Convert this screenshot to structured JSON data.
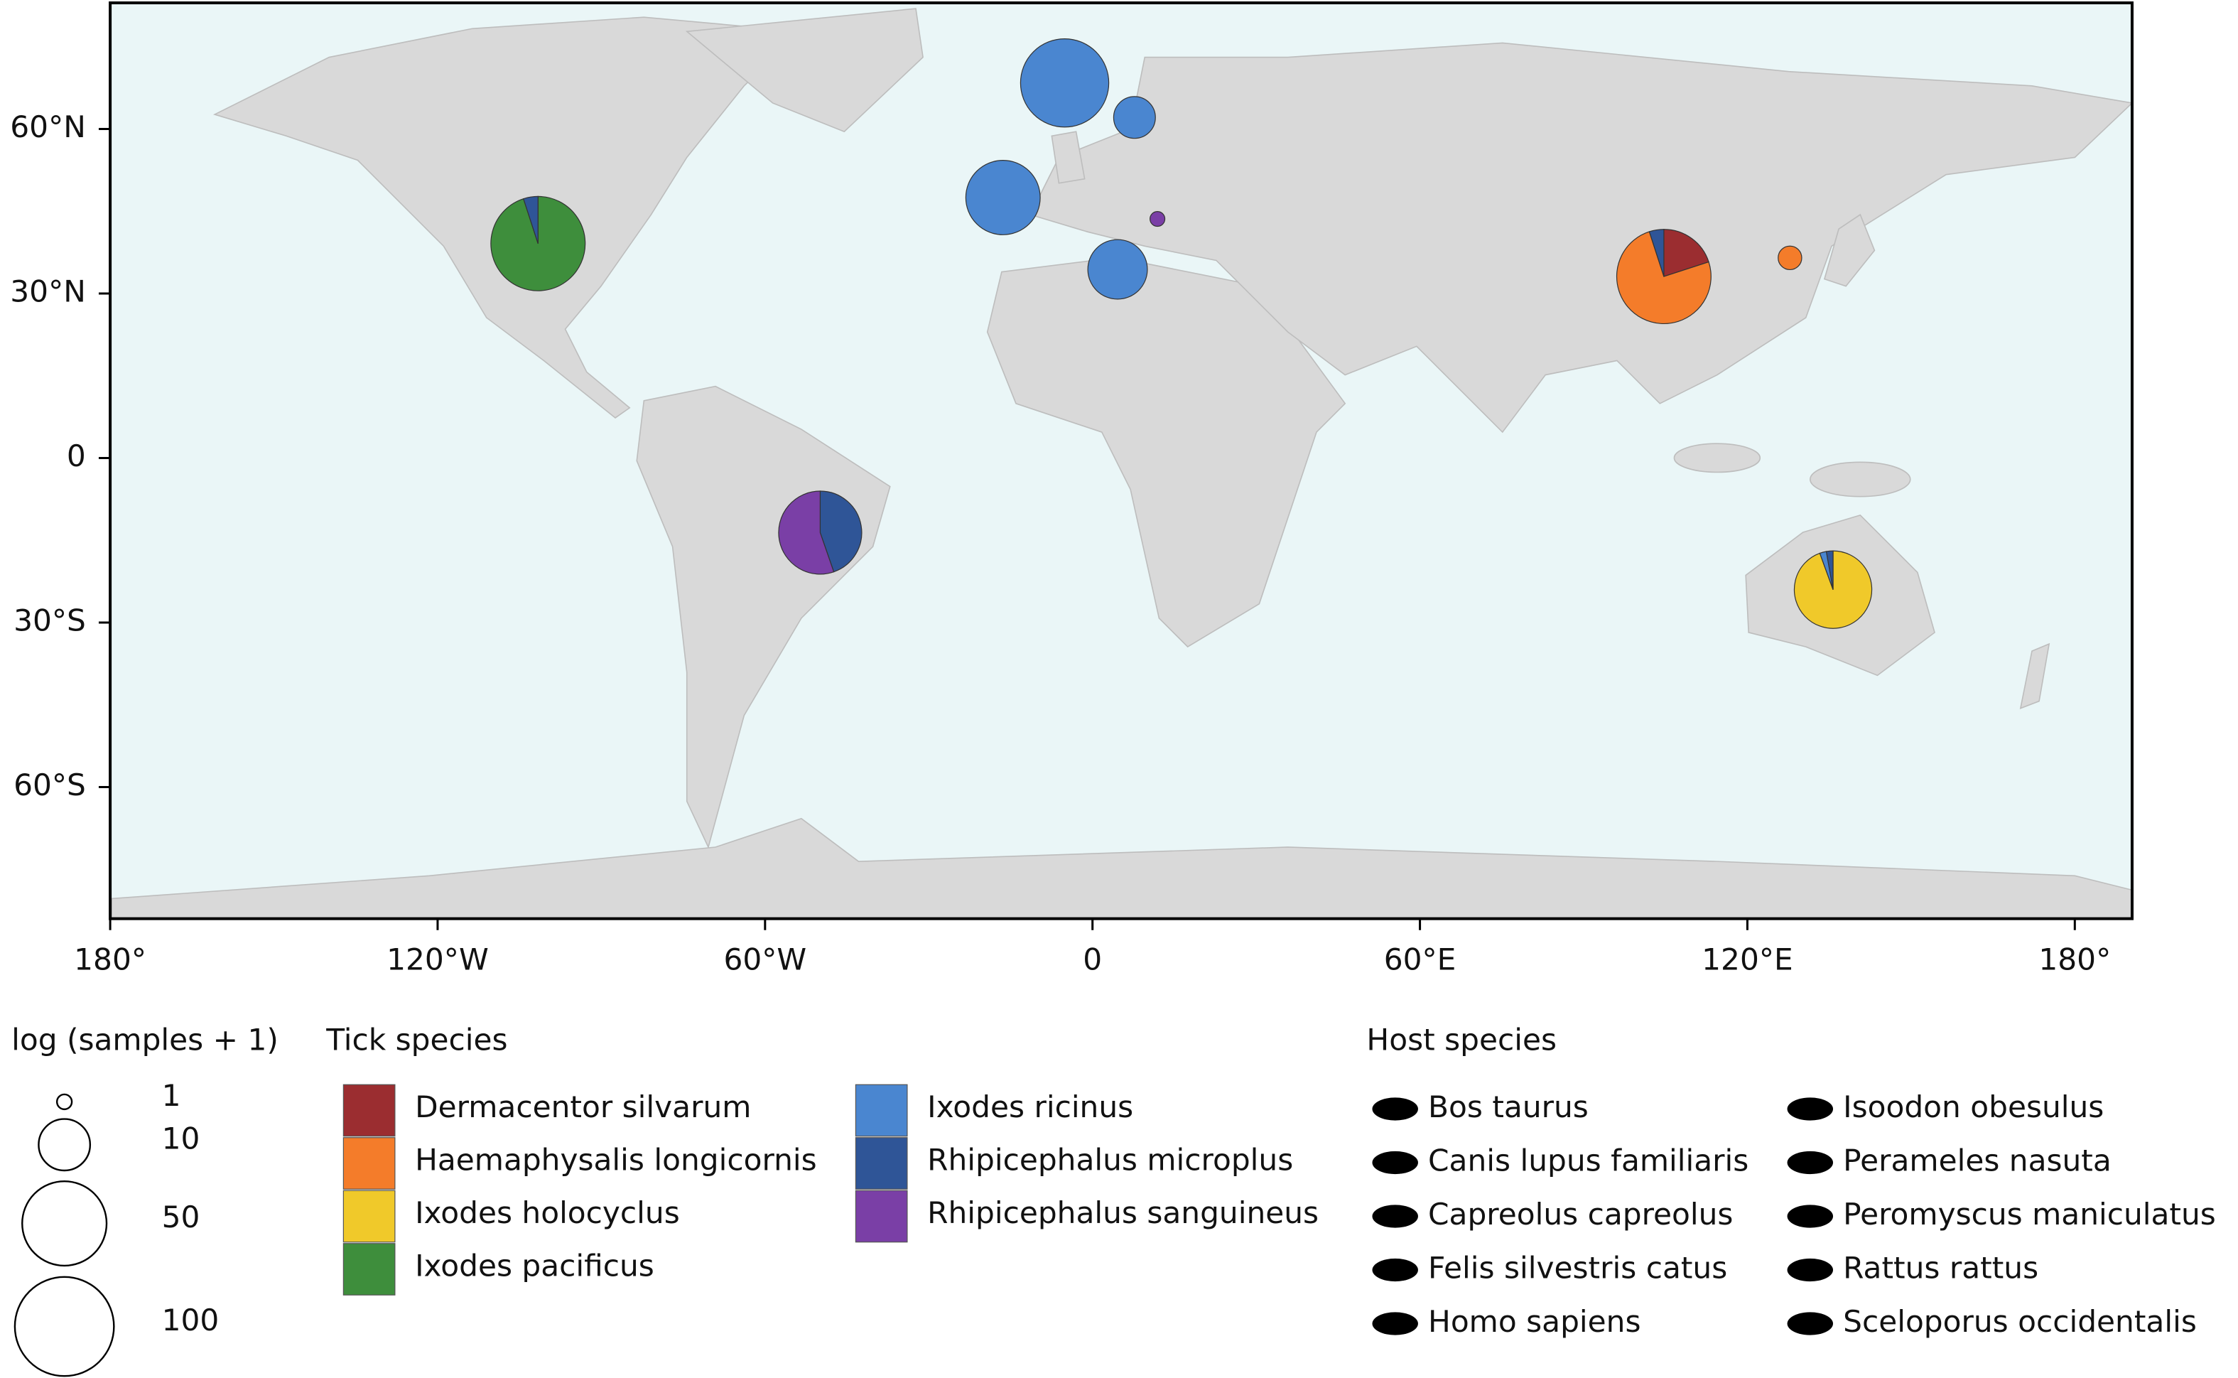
{
  "map": {
    "xlim": [
      -180,
      190.5
    ],
    "ylim": [
      -84,
      83
    ],
    "xticks": [
      {
        "value": -180,
        "label": "180°"
      },
      {
        "value": -120,
        "label": "120°W"
      },
      {
        "value": -60,
        "label": "60°W"
      },
      0,
      {
        "value": 60,
        "label": "60°E"
      },
      {
        "value": 120,
        "label": "120°E"
      },
      {
        "value": 180,
        "label": "180°"
      }
    ],
    "yticks": [
      {
        "value": 60,
        "label": "60°N"
      },
      {
        "value": 30,
        "label": "30°N"
      },
      0,
      {
        "value": -30,
        "label": "30°S"
      },
      {
        "value": -60,
        "label": "60°S"
      }
    ],
    "sites": [
      {
        "lon": -101.6,
        "lat": 39.1,
        "values": [
          0,
          0,
          0,
          76,
          0,
          4,
          0
        ]
      },
      {
        "lon": -5.1,
        "lat": 68.4,
        "values": [
          0,
          0,
          0,
          0,
          60,
          0,
          0
        ]
      },
      {
        "lon": 7.7,
        "lat": 62.1,
        "values": [
          0,
          0,
          0,
          0,
          6,
          0,
          0
        ]
      },
      {
        "lon": -16.4,
        "lat": 47.5,
        "values": [
          0,
          0,
          0,
          0,
          31,
          0,
          0
        ]
      },
      {
        "lon": 11.9,
        "lat": 43.6,
        "values": [
          0,
          0,
          0,
          0,
          0,
          0,
          1
        ]
      },
      {
        "lon": 4.6,
        "lat": 34.4,
        "values": [
          0,
          0,
          0,
          0,
          15,
          0,
          0
        ]
      },
      {
        "lon": 104.7,
        "lat": 33.1,
        "values": [
          16,
          60,
          0,
          0,
          0,
          4,
          0
        ]
      },
      {
        "lon": 127.8,
        "lat": 36.5,
        "values": [
          0,
          2,
          0,
          0,
          0,
          0,
          0
        ]
      },
      {
        "lon": -49.9,
        "lat": -13.6,
        "values": [
          0,
          0,
          0,
          0,
          0,
          21,
          26
        ]
      },
      {
        "lon": 135.7,
        "lat": -24.0,
        "values": [
          0,
          0,
          34,
          0,
          1,
          1,
          0
        ]
      }
    ]
  },
  "size_legend": {
    "title": "log (samples + 1)",
    "sizes": [
      1,
      10,
      50,
      100
    ]
  },
  "tick_species": {
    "title": "Tick species",
    "items": [
      {
        "name": "Dermacentor silvarum",
        "color": "#9b2d30"
      },
      {
        "name": "Haemaphysalis longicornis",
        "color": "#f47c2a"
      },
      {
        "name": "Ixodes holocyclus",
        "color": "#f0c92a"
      },
      {
        "name": "Ixodes pacificus",
        "color": "#3e8e3c"
      },
      {
        "name": "Ixodes ricinus",
        "color": "#4a86d0"
      },
      {
        "name": "Rhipicephalus microplus",
        "color": "#2f5597"
      },
      {
        "name": "Rhipicephalus sanguineus",
        "color": "#7a3fa6"
      }
    ]
  },
  "host_species": {
    "title": "Host species",
    "items": [
      "Bos taurus",
      "Canis lupus familiaris",
      "Capreolus capreolus",
      "Felis silvestris catus",
      "Homo sapiens",
      "Isoodon obesulus",
      "Perameles nasuta",
      "Peromyscus maniculatus",
      "Rattus rattus",
      "Sceloporus occidentalis"
    ]
  }
}
